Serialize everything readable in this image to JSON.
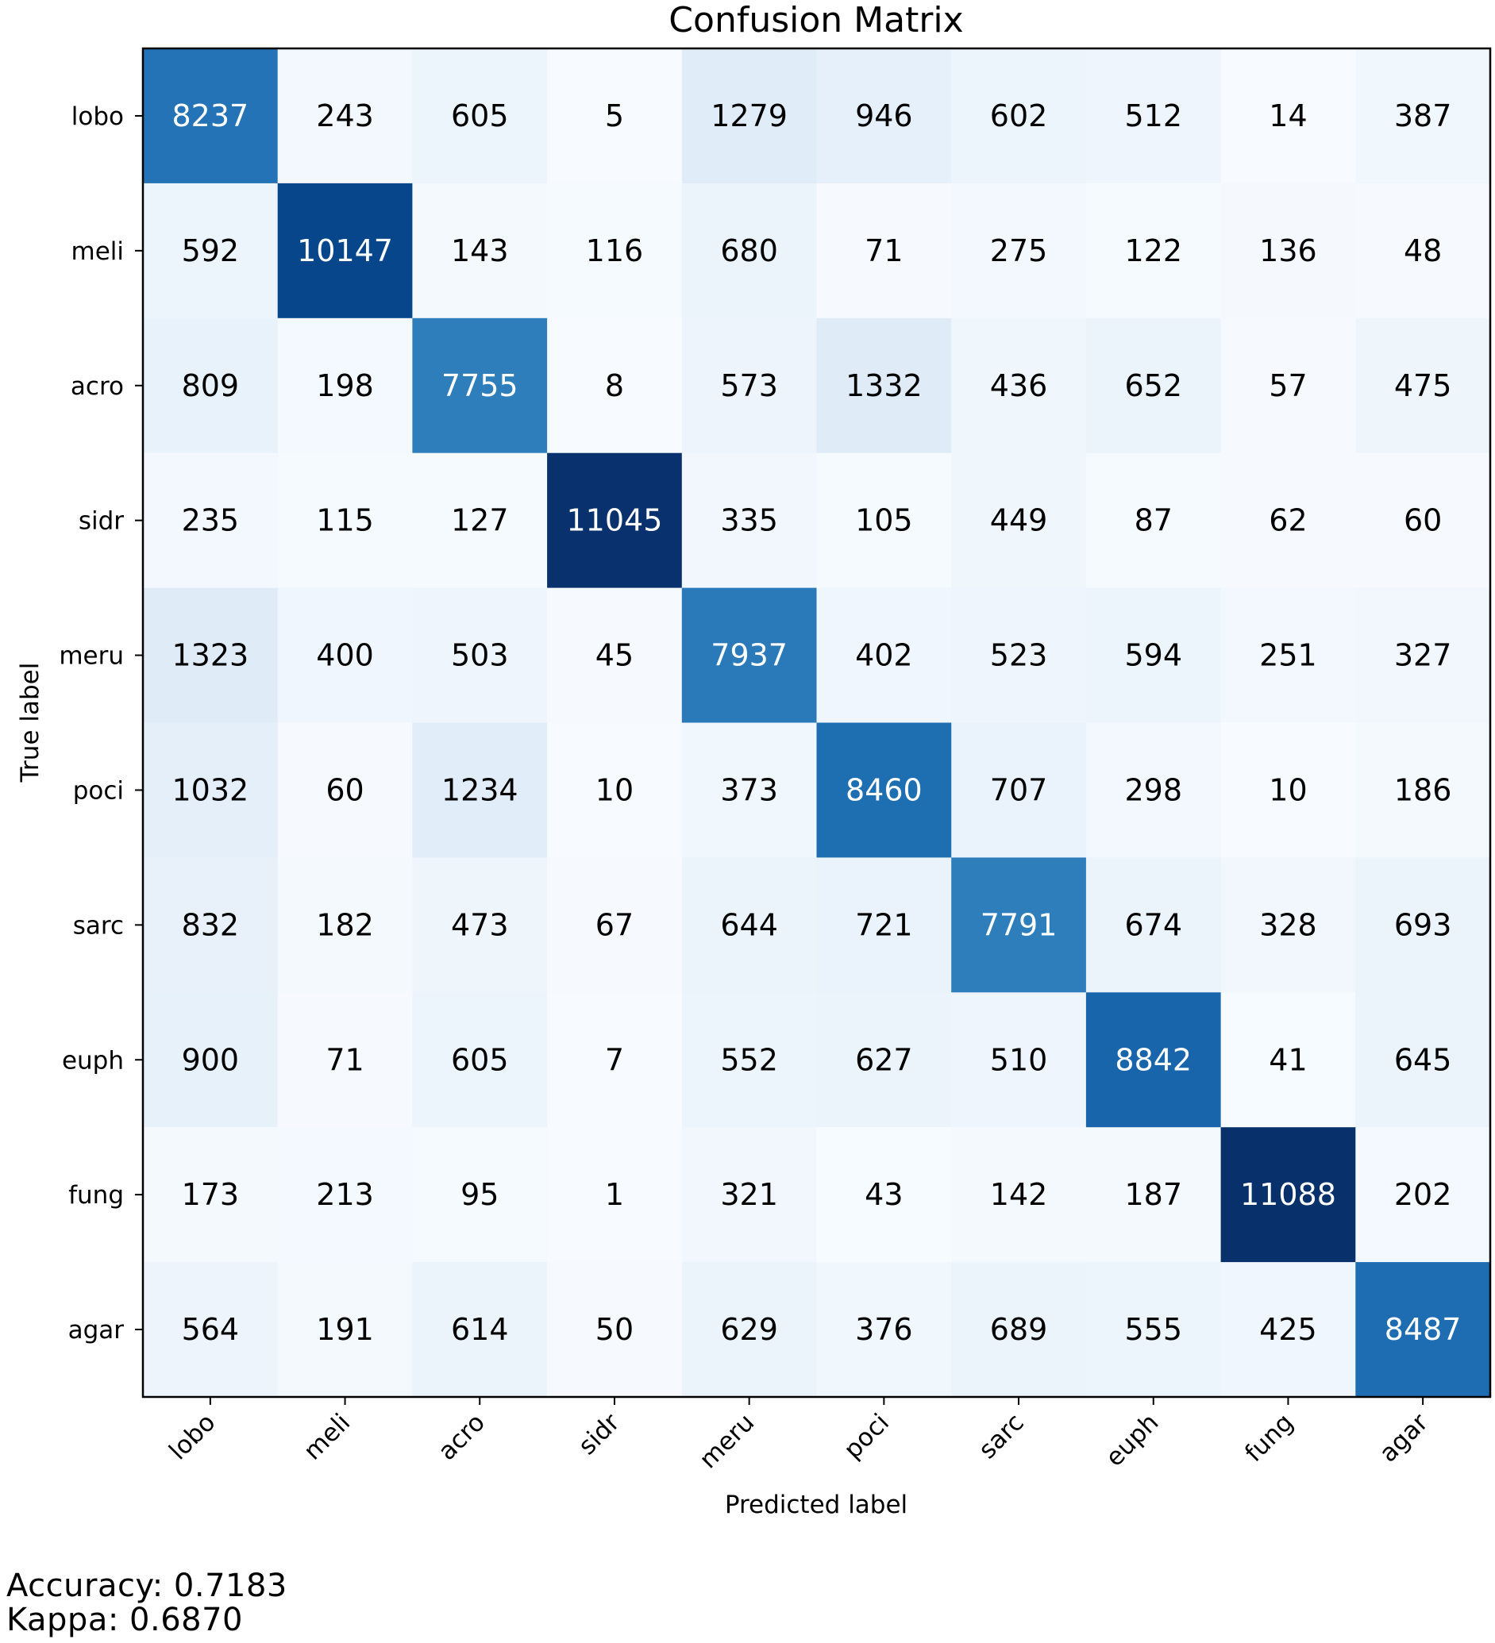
{
  "chart_data": {
    "type": "heatmap",
    "title": "Confusion Matrix",
    "xlabel": "Predicted label",
    "ylabel": "True label",
    "colormap": "Blues",
    "grid": false,
    "x_categories": [
      "lobo",
      "meli",
      "acro",
      "sidr",
      "meru",
      "poci",
      "sarc",
      "euph",
      "fung",
      "agar"
    ],
    "y_categories": [
      "lobo",
      "meli",
      "acro",
      "sidr",
      "meru",
      "poci",
      "sarc",
      "euph",
      "fung",
      "agar"
    ],
    "values": [
      [
        8237,
        243,
        605,
        5,
        1279,
        946,
        602,
        512,
        14,
        387
      ],
      [
        592,
        10147,
        143,
        116,
        680,
        71,
        275,
        122,
        136,
        48
      ],
      [
        809,
        198,
        7755,
        8,
        573,
        1332,
        436,
        652,
        57,
        475
      ],
      [
        235,
        115,
        127,
        11045,
        335,
        105,
        449,
        87,
        62,
        60
      ],
      [
        1323,
        400,
        503,
        45,
        7937,
        402,
        523,
        594,
        251,
        327
      ],
      [
        1032,
        60,
        1234,
        10,
        373,
        8460,
        707,
        298,
        10,
        186
      ],
      [
        832,
        182,
        473,
        67,
        644,
        721,
        7791,
        674,
        328,
        693
      ],
      [
        900,
        71,
        605,
        7,
        552,
        627,
        510,
        8842,
        41,
        645
      ],
      [
        173,
        213,
        95,
        1,
        321,
        43,
        142,
        187,
        11088,
        202
      ],
      [
        564,
        191,
        614,
        50,
        629,
        376,
        689,
        555,
        425,
        8487
      ]
    ]
  },
  "stats": {
    "accuracy": "Accuracy: 0.7183",
    "kappa": "Kappa: 0.6870"
  }
}
